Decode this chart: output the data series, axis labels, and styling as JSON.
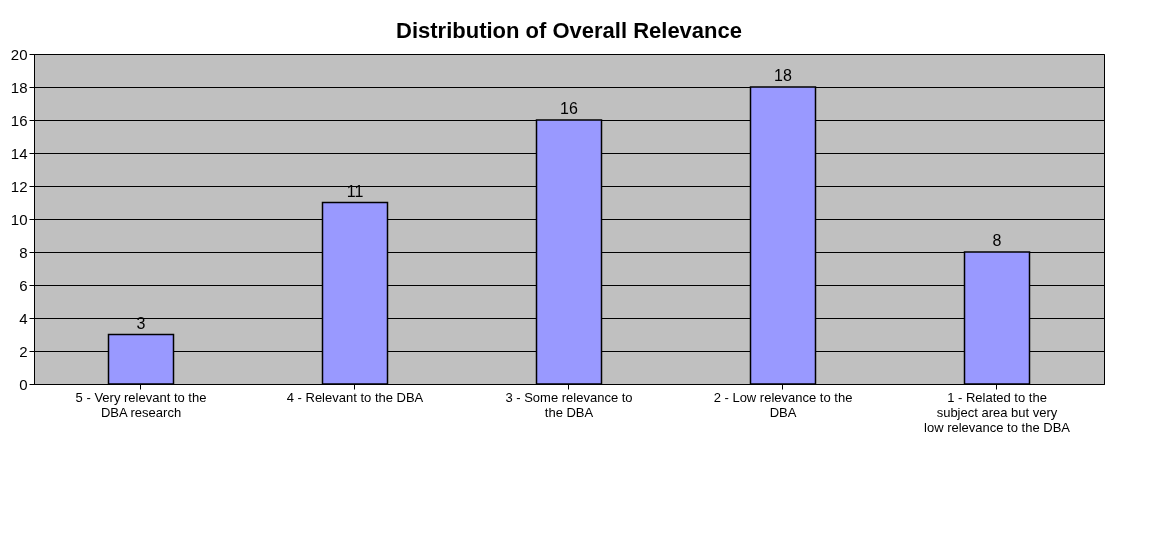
{
  "chart_data": {
    "type": "bar",
    "title": "Distribution of Overall Relevance",
    "categories": [
      "5 - Very relevant to the DBA research",
      "4 - Relevant to the DBA",
      "3 - Some relevance to the DBA",
      "2 - Low relevance to the DBA",
      "1 - Related to the subject area but very low relevance to the DBA"
    ],
    "values": [
      3,
      11,
      16,
      18,
      8
    ],
    "color": "#9999ff",
    "ylim": [
      0,
      20
    ],
    "yticks": [
      0,
      2,
      4,
      6,
      8,
      10,
      12,
      14,
      16,
      18,
      20
    ],
    "grid": "y",
    "data_labels": true,
    "legend": false
  }
}
